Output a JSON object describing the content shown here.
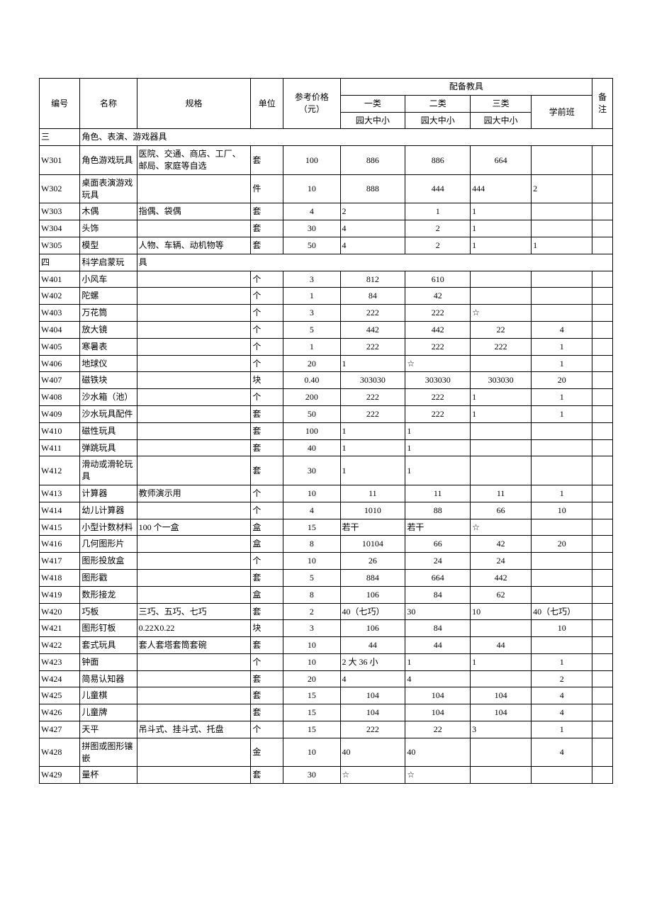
{
  "headers": {
    "id": "编号",
    "name": "名称",
    "spec": "规格",
    "unit": "单位",
    "price": "参考价格（元）",
    "equip": "配备教具",
    "cat1": "一类",
    "cat2": "二类",
    "cat3": "三类",
    "sub1": "园大中小",
    "sub2": "园大中小",
    "sub3": "园大中小",
    "preschool": "学前班",
    "note": "备注"
  },
  "sections": [
    {
      "id": "三",
      "title": "角色、表演、游戏器具"
    },
    {
      "id": "四",
      "title": "科学启蒙玩",
      "title2": "具"
    }
  ],
  "rows": [
    {
      "sec": 0
    },
    {
      "id": "W301",
      "name": "角色游戏玩具",
      "spec": "医院、交通、商店、工厂、邮局、家庭等自选",
      "unit": "套",
      "price": "100",
      "c1": "886",
      "c1a": "c",
      "c2": "886",
      "c2a": "c",
      "c3": "664",
      "c3a": "c",
      "pre": "",
      "note": ""
    },
    {
      "id": "W302",
      "name": "桌面表演游戏玩具",
      "spec": "",
      "unit": "件",
      "price": "10",
      "c1": "888",
      "c1a": "c",
      "c2": "444",
      "c2a": "c",
      "c3": "444",
      "c3a": "l",
      "pre": "2",
      "prea": "l",
      "note": ""
    },
    {
      "id": "W303",
      "name": "木偶",
      "spec": "指偶、袋偶",
      "unit": "套",
      "price": "4",
      "c1": "2",
      "c1a": "l",
      "c2": "1",
      "c2a": "c",
      "c3": "1",
      "c3a": "l",
      "pre": "",
      "note": ""
    },
    {
      "id": "W304",
      "name": "头饰",
      "spec": "",
      "unit": "套",
      "price": "30",
      "c1": "4",
      "c1a": "l",
      "c2": "2",
      "c2a": "c",
      "c3": "1",
      "c3a": "l",
      "pre": "",
      "note": ""
    },
    {
      "id": "W305",
      "name": "模型",
      "spec": "人物、车辆、动机物等",
      "unit": "套",
      "price": "50",
      "c1": "4",
      "c1a": "l",
      "c2": "2",
      "c2a": "c",
      "c3": "1",
      "c3a": "l",
      "pre": "1",
      "prea": "l",
      "note": ""
    },
    {
      "sec": 1
    },
    {
      "id": "W401",
      "name": "小风车",
      "spec": "",
      "unit": "个",
      "price": "3",
      "c1": "812",
      "c1a": "c",
      "c2": "610",
      "c2a": "c",
      "c3": "",
      "pre": "",
      "note": ""
    },
    {
      "id": "W402",
      "name": "陀螺",
      "spec": "",
      "unit": "个",
      "price": "1",
      "c1": "84",
      "c1a": "c",
      "c2": "42",
      "c2a": "c",
      "c3": "",
      "pre": "",
      "note": ""
    },
    {
      "id": "W403",
      "name": "万花筒",
      "spec": "",
      "unit": "个",
      "price": "3",
      "c1": "222",
      "c1a": "c",
      "c2": "222",
      "c2a": "c",
      "c3": "☆",
      "c3a": "l",
      "pre": "",
      "note": ""
    },
    {
      "id": "W404",
      "name": "放大镜",
      "spec": "",
      "unit": "个",
      "price": "5",
      "c1": "442",
      "c1a": "c",
      "c2": "442",
      "c2a": "c",
      "c3": "22",
      "c3a": "c",
      "pre": "4",
      "prea": "c",
      "note": ""
    },
    {
      "id": "W405",
      "name": "寒暑表",
      "spec": "",
      "unit": "个",
      "price": "1",
      "c1": "222",
      "c1a": "c",
      "c2": "222",
      "c2a": "c",
      "c3": "222",
      "c3a": "c",
      "pre": "1",
      "prea": "c",
      "note": ""
    },
    {
      "id": "W406",
      "name": "地球仪",
      "spec": "",
      "unit": "个",
      "price": "20",
      "c1": "1",
      "c1a": "l",
      "c2": "☆",
      "c2a": "l",
      "c3": "",
      "pre": "1",
      "prea": "c",
      "note": ""
    },
    {
      "id": "W407",
      "name": "磁铁块",
      "spec": "",
      "unit": "块",
      "price": "0.40",
      "c1": "303030",
      "c1a": "c",
      "c2": "303030",
      "c2a": "c",
      "c3": "303030",
      "c3a": "c",
      "pre": "20",
      "prea": "c",
      "note": ""
    },
    {
      "id": "W408",
      "name": "沙水箱（池）",
      "spec": "",
      "unit": "个",
      "price": "200",
      "c1": "222",
      "c1a": "c",
      "c2": "222",
      "c2a": "c",
      "c3": "1",
      "c3a": "l",
      "pre": "1",
      "prea": "c",
      "note": ""
    },
    {
      "id": "W409",
      "name": "沙水玩具配件",
      "spec": "",
      "unit": "套",
      "price": "50",
      "c1": "222",
      "c1a": "c",
      "c2": "222",
      "c2a": "c",
      "c3": "1",
      "c3a": "l",
      "pre": "1",
      "prea": "c",
      "note": ""
    },
    {
      "id": "W410",
      "name": "磁性玩具",
      "spec": "",
      "unit": "套",
      "price": "100",
      "c1": "1",
      "c1a": "l",
      "c2": "1",
      "c2a": "l",
      "c3": "",
      "pre": "",
      "note": ""
    },
    {
      "id": "W411",
      "name": "弹跳玩具",
      "spec": "",
      "unit": "套",
      "price": "40",
      "c1": "1",
      "c1a": "l",
      "c2": "1",
      "c2a": "l",
      "c3": "",
      "pre": "",
      "note": ""
    },
    {
      "id": "W412",
      "name": "滑动或滑轮玩具",
      "spec": "",
      "unit": "套",
      "price": "30",
      "c1": "1",
      "c1a": "l",
      "c2": "1",
      "c2a": "l",
      "c3": "",
      "pre": "",
      "note": ""
    },
    {
      "id": "W413",
      "name": "计算器",
      "spec": "教师演示用",
      "unit": "个",
      "price": "10",
      "c1": "11",
      "c1a": "c",
      "c2": "11",
      "c2a": "c",
      "c3": "11",
      "c3a": "c",
      "pre": "1",
      "prea": "c",
      "note": ""
    },
    {
      "id": "W414",
      "name": "幼儿计算器",
      "spec": "",
      "unit": "个",
      "price": "4",
      "c1": "1010",
      "c1a": "c",
      "c2": "88",
      "c2a": "c",
      "c3": "66",
      "c3a": "c",
      "pre": "10",
      "prea": "c",
      "note": ""
    },
    {
      "id": "W415",
      "name": "小型计数材料",
      "spec": "100 个一盒",
      "unit": "盒",
      "price": "15",
      "c1": "若干",
      "c1a": "l",
      "c2": "若干",
      "c2a": "l",
      "c3": "☆",
      "c3a": "l",
      "pre": "",
      "note": ""
    },
    {
      "id": "W416",
      "name": "几何图形片",
      "spec": "",
      "unit": "盒",
      "price": "8",
      "c1": "10104",
      "c1a": "c",
      "c2": "66",
      "c2a": "c",
      "c3": "42",
      "c3a": "c",
      "pre": "20",
      "prea": "c",
      "note": ""
    },
    {
      "id": "W417",
      "name": "图形投放盒",
      "spec": "",
      "unit": "个",
      "price": "10",
      "c1": "26",
      "c1a": "c",
      "c2": "24",
      "c2a": "c",
      "c3": "24",
      "c3a": "c",
      "pre": "",
      "note": ""
    },
    {
      "id": "W418",
      "name": "图形戳",
      "spec": "",
      "unit": "套",
      "price": "5",
      "c1": "884",
      "c1a": "c",
      "c2": "664",
      "c2a": "c",
      "c3": "442",
      "c3a": "c",
      "pre": "",
      "note": ""
    },
    {
      "id": "W419",
      "name": "数形接龙",
      "spec": "",
      "unit": "盒",
      "price": "8",
      "c1": "106",
      "c1a": "c",
      "c2": "84",
      "c2a": "c",
      "c3": "62",
      "c3a": "c",
      "pre": "",
      "note": ""
    },
    {
      "id": "W420",
      "name": "巧板",
      "spec": "三巧、五巧、七巧",
      "unit": "套",
      "price": "2",
      "c1": "40（七巧）",
      "c1a": "l",
      "c2": "30",
      "c2a": "l",
      "c3": "10",
      "c3a": "l",
      "pre": "40（七巧）",
      "prea": "l",
      "note": ""
    },
    {
      "id": "W421",
      "name": "图形钉板",
      "spec": "0.22X0.22",
      "unit": "块",
      "price": "3",
      "c1": "106",
      "c1a": "c",
      "c2": "84",
      "c2a": "c",
      "c3": "",
      "pre": "10",
      "prea": "c",
      "note": ""
    },
    {
      "id": "W422",
      "name": "套式玩具",
      "spec": "套人套塔套筒套碗",
      "unit": "套",
      "price": "10",
      "c1": "44",
      "c1a": "c",
      "c2": "44",
      "c2a": "c",
      "c3": "44",
      "c3a": "c",
      "pre": "",
      "note": ""
    },
    {
      "id": "W423",
      "name": "钟面",
      "spec": "",
      "unit": "个",
      "price": "10",
      "c1": "2 大 36 小",
      "c1a": "l",
      "c2": "1",
      "c2a": "l",
      "c3": "1",
      "c3a": "l",
      "pre": "1",
      "prea": "c",
      "note": ""
    },
    {
      "id": "W424",
      "name": "简易认知器",
      "spec": "",
      "unit": "套",
      "price": "20",
      "c1": "4",
      "c1a": "l",
      "c2": "4",
      "c2a": "l",
      "c3": "",
      "pre": "2",
      "prea": "c",
      "note": ""
    },
    {
      "id": "W425",
      "name": "儿童棋",
      "spec": "",
      "unit": "套",
      "price": "15",
      "c1": "104",
      "c1a": "c",
      "c2": "104",
      "c2a": "c",
      "c3": "104",
      "c3a": "c",
      "pre": "4",
      "prea": "c",
      "note": ""
    },
    {
      "id": "W426",
      "name": "儿童牌",
      "spec": "",
      "unit": "套",
      "price": "15",
      "c1": "104",
      "c1a": "c",
      "c2": "104",
      "c2a": "c",
      "c3": "104",
      "c3a": "c",
      "pre": "4",
      "prea": "c",
      "note": ""
    },
    {
      "id": "W427",
      "name": "天平",
      "spec": "吊斗式、挂斗式、托盘",
      "unit": "个",
      "price": "15",
      "c1": "222",
      "c1a": "c",
      "c2": "22",
      "c2a": "c",
      "c3": "3",
      "c3a": "l",
      "pre": "1",
      "prea": "c",
      "note": ""
    },
    {
      "id": "W428",
      "name": "拼图或图形镶嵌",
      "spec": "",
      "unit": "金",
      "price": "10",
      "c1": "40",
      "c1a": "l",
      "c2": "40",
      "c2a": "l",
      "c3": "",
      "pre": "4",
      "prea": "c",
      "note": ""
    },
    {
      "id": "W429",
      "name": "量杯",
      "spec": "",
      "unit": "套",
      "price": "30",
      "c1": "☆",
      "c1a": "l",
      "c2": "☆",
      "c2a": "l",
      "c3": "",
      "pre": "",
      "note": ""
    }
  ]
}
